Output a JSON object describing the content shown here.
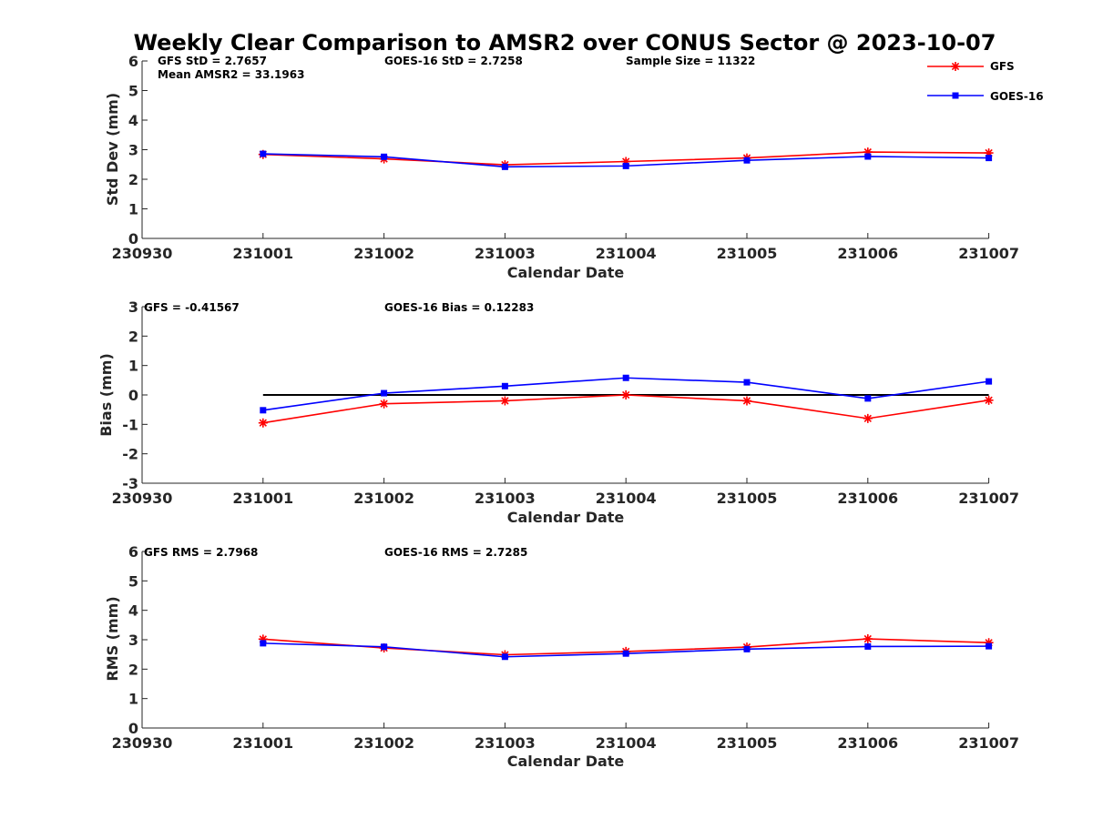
{
  "title": "Weekly Clear Comparison to AMSR2 over CONUS Sector @ 2023-10-07",
  "legend": {
    "position": "top-right",
    "entries": [
      {
        "name": "GFS",
        "color": "#ff0000",
        "marker": "asterisk"
      },
      {
        "name": "GOES-16",
        "color": "#0000ff",
        "marker": "square"
      }
    ]
  },
  "chart_data": [
    {
      "type": "line",
      "xlabel": "Calendar Date",
      "ylabel": "Std Dev (mm)",
      "ylim": [
        0,
        6
      ],
      "yticks": [
        "0",
        "1",
        "2",
        "3",
        "4",
        "5",
        "6"
      ],
      "xticks": [
        "230930",
        "231001",
        "231002",
        "231003",
        "231004",
        "231005",
        "231006",
        "231007"
      ],
      "x": [
        "231001",
        "231002",
        "231003",
        "231004",
        "231005",
        "231006",
        "231007"
      ],
      "annotations": [
        "GFS StD = 2.7657",
        "Mean AMSR2 = 33.1963",
        "GOES-16 StD = 2.7258",
        "Sample Size = 11322"
      ],
      "series": [
        {
          "name": "GFS",
          "color": "#ff0000",
          "values": [
            2.84,
            2.69,
            2.49,
            2.6,
            2.72,
            2.92,
            2.89
          ]
        },
        {
          "name": "GOES-16",
          "color": "#0000ff",
          "values": [
            2.86,
            2.76,
            2.42,
            2.45,
            2.64,
            2.77,
            2.72
          ]
        }
      ]
    },
    {
      "type": "line",
      "xlabel": "Calendar Date",
      "ylabel": "Bias (mm)",
      "ylim": [
        -3,
        3
      ],
      "yticks": [
        "-3",
        "-2",
        "-1",
        "0",
        "1",
        "2",
        "3"
      ],
      "xticks": [
        "230930",
        "231001",
        "231002",
        "231003",
        "231004",
        "231005",
        "231006",
        "231007"
      ],
      "x": [
        "231001",
        "231002",
        "231003",
        "231004",
        "231005",
        "231006",
        "231007"
      ],
      "annotations": [
        "GFS = -0.41567",
        "GOES-16 Bias  = 0.12283"
      ],
      "zero_line": 0,
      "series": [
        {
          "name": "GFS",
          "color": "#ff0000",
          "values": [
            -0.95,
            -0.3,
            -0.2,
            0.0,
            -0.2,
            -0.8,
            -0.18
          ]
        },
        {
          "name": "GOES-16",
          "color": "#0000ff",
          "values": [
            -0.52,
            0.06,
            0.3,
            0.58,
            0.43,
            -0.12,
            0.46
          ]
        }
      ]
    },
    {
      "type": "line",
      "xlabel": "Calendar Date",
      "ylabel": "RMS (mm)",
      "ylim": [
        0,
        6
      ],
      "yticks": [
        "0",
        "1",
        "2",
        "3",
        "4",
        "5",
        "6"
      ],
      "xticks": [
        "230930",
        "231001",
        "231002",
        "231003",
        "231004",
        "231005",
        "231006",
        "231007"
      ],
      "x": [
        "231001",
        "231002",
        "231003",
        "231004",
        "231005",
        "231006",
        "231007"
      ],
      "annotations": [
        "GFS RMS = 2.7968",
        "GOES-16 RMS = 2.7285"
      ],
      "series": [
        {
          "name": "GFS",
          "color": "#ff0000",
          "values": [
            3.02,
            2.72,
            2.49,
            2.6,
            2.75,
            3.03,
            2.9
          ]
        },
        {
          "name": "GOES-16",
          "color": "#0000ff",
          "values": [
            2.88,
            2.76,
            2.42,
            2.53,
            2.68,
            2.77,
            2.78
          ]
        }
      ]
    }
  ]
}
